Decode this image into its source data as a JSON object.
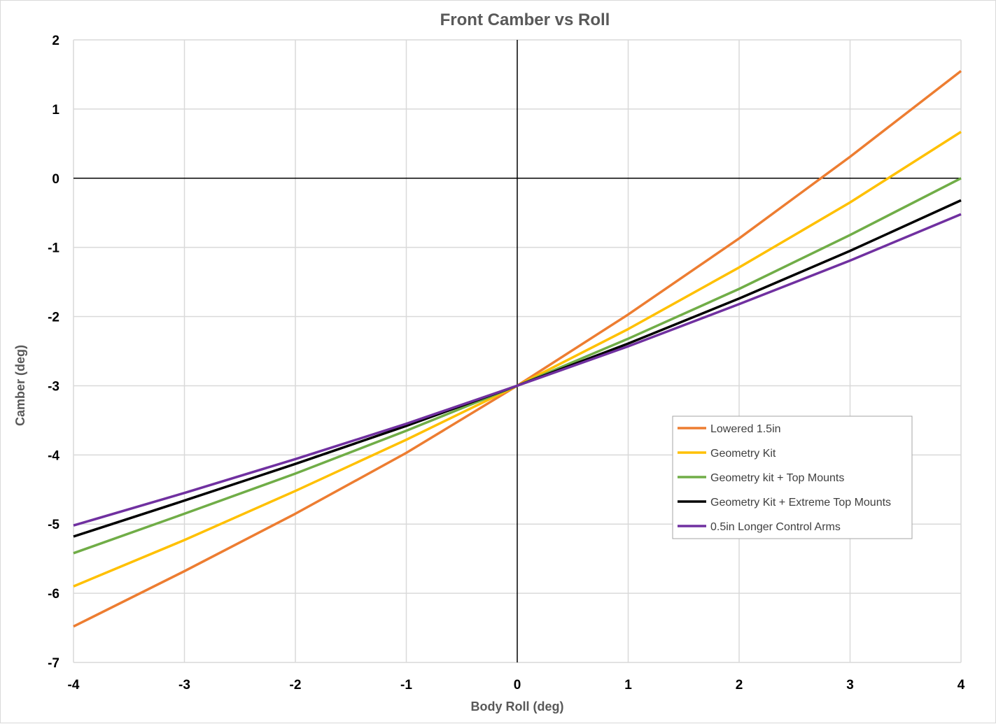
{
  "chart_data": {
    "type": "line",
    "title": "Front Camber vs Roll",
    "xlabel": "Body Roll (deg)",
    "ylabel": "Camber (deg)",
    "xlim": [
      -4,
      4
    ],
    "ylim": [
      -7,
      2
    ],
    "xticks": [
      "-4",
      "-3",
      "-2",
      "-1",
      "0",
      "1",
      "2",
      "3",
      "4"
    ],
    "yticks": [
      "2",
      "1",
      "0",
      "-1",
      "-2",
      "-3",
      "-4",
      "-5",
      "-6",
      "-7"
    ],
    "grid": true,
    "legend_position": "right",
    "x": [
      -4,
      -3,
      -2,
      -1,
      0,
      1,
      2,
      3,
      4
    ],
    "series": [
      {
        "name": "Lowered 1.5in",
        "color": "#ED7D31",
        "values": [
          -6.48,
          -5.68,
          -4.85,
          -3.97,
          -3.0,
          -1.97,
          -0.87,
          0.31,
          1.55
        ]
      },
      {
        "name": "Geometry Kit",
        "color": "#FFC000",
        "values": [
          -5.9,
          -5.23,
          -4.52,
          -3.78,
          -3.0,
          -2.18,
          -1.29,
          -0.35,
          0.67
        ]
      },
      {
        "name": "Geometry kit + Top Mounts",
        "color": "#70AD47",
        "values": [
          -5.42,
          -4.85,
          -4.27,
          -3.65,
          -3.0,
          -2.32,
          -1.6,
          -0.82,
          0.0
        ]
      },
      {
        "name": "Geometry Kit + Extreme Top Mounts",
        "color": "#000000",
        "values": [
          -5.18,
          -4.66,
          -4.13,
          -3.58,
          -3.0,
          -2.39,
          -1.74,
          -1.05,
          -0.32
        ]
      },
      {
        "name": "0.5in Longer Control Arms",
        "color": "#7030A0",
        "values": [
          -5.02,
          -4.55,
          -4.06,
          -3.55,
          -3.0,
          -2.43,
          -1.82,
          -1.19,
          -0.52
        ]
      }
    ]
  }
}
